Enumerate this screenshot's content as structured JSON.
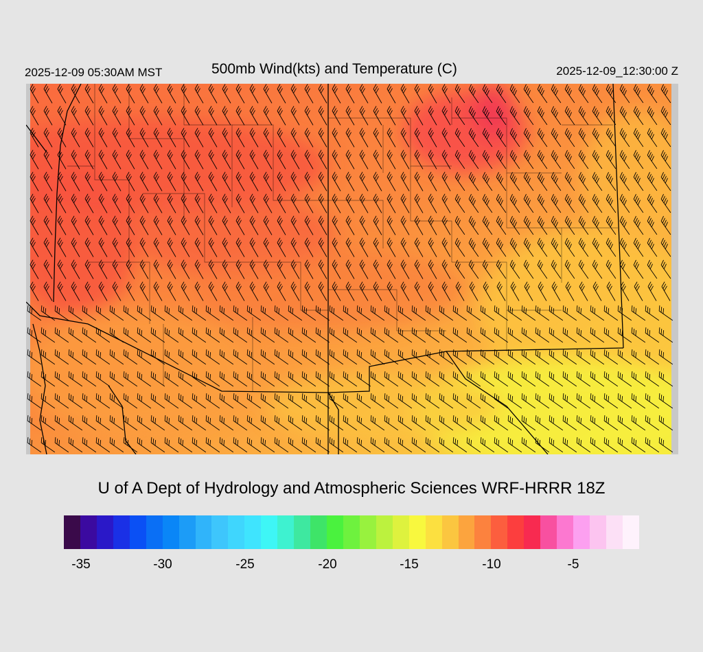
{
  "header": {
    "local_time": "2025-12-09 05:30AM MST",
    "title": "500mb Wind(kts) and Temperature (C)",
    "valid_time": "2025-12-09_12:30:00 Z"
  },
  "credit": "U of A Dept of Hydrology and Atmospheric Sciences WRF-HRRR 18Z",
  "colorbar": {
    "colors": [
      "#3a0a4a",
      "#3b0aa0",
      "#2a18c8",
      "#1a30e6",
      "#0a50f5",
      "#0a6ff5",
      "#0a86f7",
      "#1c9cf7",
      "#30b4fa",
      "#3ec6fc",
      "#3fd6fd",
      "#3fe4fe",
      "#3ef6f6",
      "#3ef2d0",
      "#3ee8a0",
      "#3ee468",
      "#4af23e",
      "#6ef23e",
      "#98f23e",
      "#bcf23e",
      "#def23e",
      "#f8f83e",
      "#fce040",
      "#fbc640",
      "#fca43e",
      "#fc823e",
      "#fc5e3e",
      "#fc3e3e",
      "#f82a50",
      "#f850a0",
      "#fc78d0",
      "#fca0f0",
      "#fcc4f0",
      "#fce0f6",
      "#fef2fc"
    ],
    "tick_labels": [
      "-35",
      "-30",
      "-25",
      "-20",
      "-15",
      "-10",
      "-5"
    ]
  },
  "map": {
    "field": "500mb temperature (C)",
    "barb_color": "#000000",
    "border_color": "#000000"
  }
}
